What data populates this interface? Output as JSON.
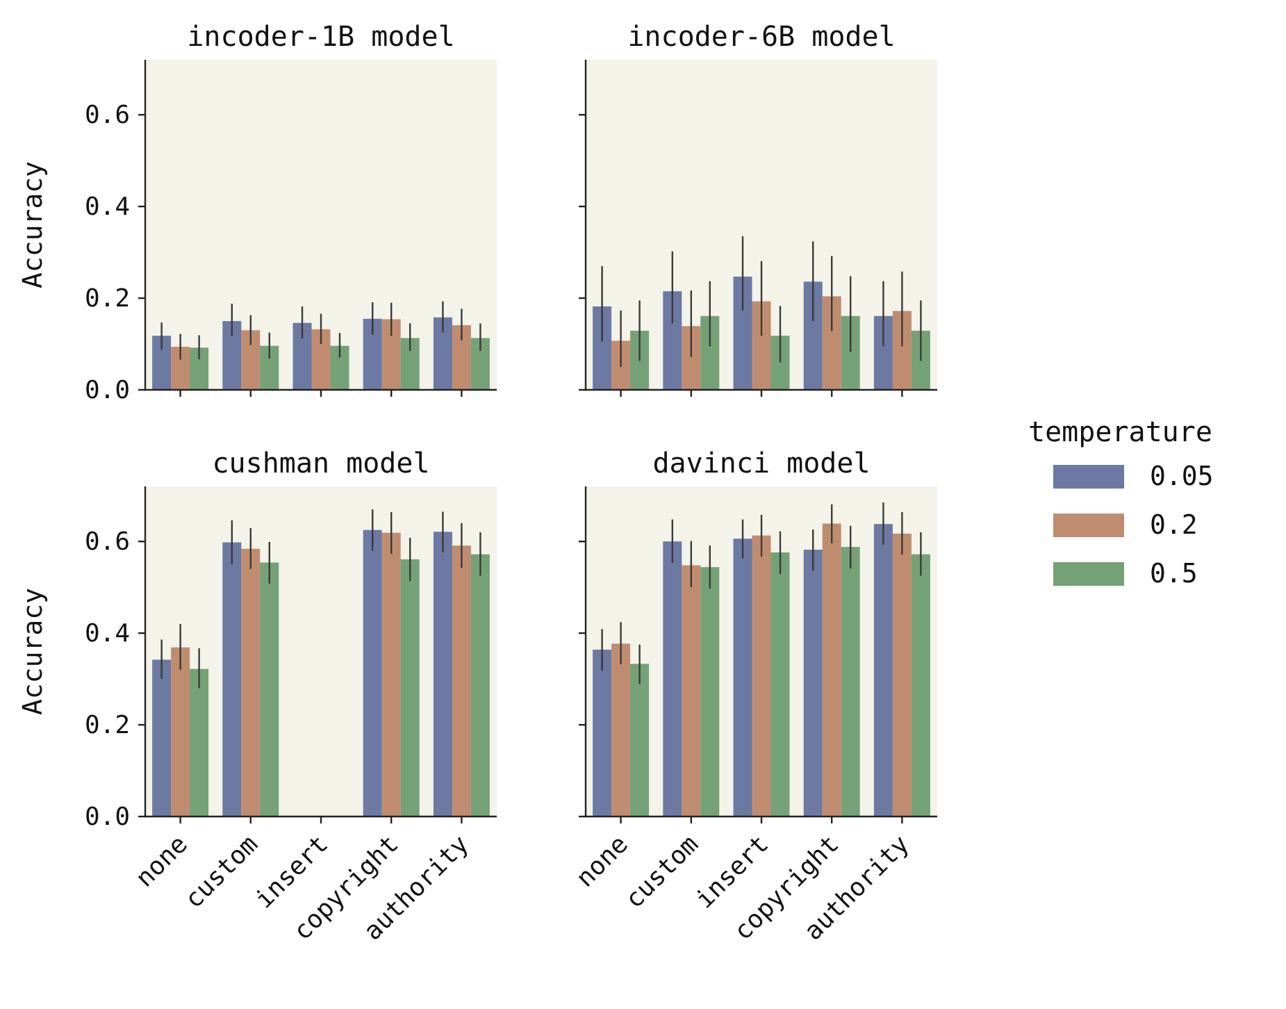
{
  "chart_data": [
    {
      "type": "bar",
      "title": "incoder-1B model",
      "xlabel": "",
      "ylabel": "Accuracy",
      "ylim": [
        0,
        0.72
      ],
      "yticks": [
        0.0,
        0.2,
        0.4,
        0.6
      ],
      "ytick_labels": [
        "0.0",
        "0.2",
        "0.4",
        "0.6"
      ],
      "categories": [
        "none",
        "custom",
        "insert",
        "copyright",
        "authority"
      ],
      "series": [
        {
          "name": "0.05",
          "values": [
            0.118,
            0.15,
            0.146,
            0.155,
            0.158
          ],
          "err_low": [
            0.087,
            0.117,
            0.112,
            0.12,
            0.125
          ],
          "err_high": [
            0.147,
            0.188,
            0.182,
            0.191,
            0.193
          ]
        },
        {
          "name": "0.2",
          "values": [
            0.094,
            0.13,
            0.132,
            0.154,
            0.141
          ],
          "err_low": [
            0.066,
            0.098,
            0.1,
            0.118,
            0.108
          ],
          "err_high": [
            0.122,
            0.163,
            0.166,
            0.19,
            0.177
          ]
        },
        {
          "name": "0.5",
          "values": [
            0.092,
            0.096,
            0.096,
            0.113,
            0.113
          ],
          "err_low": [
            0.067,
            0.068,
            0.07,
            0.085,
            0.085
          ],
          "err_high": [
            0.119,
            0.125,
            0.124,
            0.145,
            0.145
          ]
        }
      ]
    },
    {
      "type": "bar",
      "title": "incoder-6B model",
      "xlabel": "",
      "ylabel": "",
      "ylim": [
        0,
        0.72
      ],
      "yticks": [
        0.0,
        0.2,
        0.4,
        0.6
      ],
      "ytick_labels": [
        "",
        "",
        "",
        ""
      ],
      "categories": [
        "none",
        "custom",
        "insert",
        "copyright",
        "authority"
      ],
      "series": [
        {
          "name": "0.05",
          "values": [
            0.182,
            0.215,
            0.247,
            0.236,
            0.161
          ],
          "err_low": [
            0.105,
            0.145,
            0.173,
            0.15,
            0.095
          ],
          "err_high": [
            0.27,
            0.302,
            0.335,
            0.324,
            0.237
          ]
        },
        {
          "name": "0.2",
          "values": [
            0.107,
            0.139,
            0.193,
            0.204,
            0.172
          ],
          "err_low": [
            0.05,
            0.072,
            0.118,
            0.128,
            0.095
          ],
          "err_high": [
            0.173,
            0.217,
            0.281,
            0.292,
            0.258
          ]
        },
        {
          "name": "0.5",
          "values": [
            0.129,
            0.161,
            0.118,
            0.161,
            0.129
          ],
          "err_low": [
            0.063,
            0.095,
            0.06,
            0.083,
            0.063
          ],
          "err_high": [
            0.195,
            0.237,
            0.183,
            0.248,
            0.195
          ]
        }
      ]
    },
    {
      "type": "bar",
      "title": "cushman model",
      "xlabel": "",
      "ylabel": "Accuracy",
      "ylim": [
        0,
        0.72
      ],
      "yticks": [
        0.0,
        0.2,
        0.4,
        0.6
      ],
      "ytick_labels": [
        "0.0",
        "0.2",
        "0.4",
        "0.6"
      ],
      "categories": [
        "none",
        "custom",
        "insert",
        "copyright",
        "authority"
      ],
      "series": [
        {
          "name": "0.05",
          "values": [
            0.342,
            0.598,
            null,
            0.625,
            0.621
          ],
          "err_low": [
            0.3,
            0.55,
            null,
            0.58,
            0.576
          ],
          "err_high": [
            0.386,
            0.646,
            null,
            0.67,
            0.665
          ]
        },
        {
          "name": "0.2",
          "values": [
            0.369,
            0.584,
            null,
            0.619,
            0.591
          ],
          "err_low": [
            0.32,
            0.54,
            null,
            0.573,
            0.542
          ],
          "err_high": [
            0.42,
            0.629,
            null,
            0.664,
            0.64
          ]
        },
        {
          "name": "0.5",
          "values": [
            0.322,
            0.554,
            null,
            0.561,
            0.572
          ],
          "err_low": [
            0.28,
            0.508,
            null,
            0.514,
            0.525
          ],
          "err_high": [
            0.367,
            0.599,
            null,
            0.608,
            0.62
          ]
        }
      ]
    },
    {
      "type": "bar",
      "title": "davinci model",
      "xlabel": "",
      "ylabel": "",
      "ylim": [
        0,
        0.72
      ],
      "yticks": [
        0.0,
        0.2,
        0.4,
        0.6
      ],
      "ytick_labels": [
        "",
        "",
        "",
        ""
      ],
      "categories": [
        "none",
        "custom",
        "insert",
        "copyright",
        "authority"
      ],
      "series": [
        {
          "name": "0.05",
          "values": [
            0.364,
            0.6,
            0.606,
            0.582,
            0.638
          ],
          "err_low": [
            0.318,
            0.553,
            0.563,
            0.537,
            0.593
          ],
          "err_high": [
            0.409,
            0.648,
            0.648,
            0.626,
            0.685
          ]
        },
        {
          "name": "0.2",
          "values": [
            0.377,
            0.548,
            0.613,
            0.639,
            0.617
          ],
          "err_low": [
            0.332,
            0.5,
            0.567,
            0.596,
            0.571
          ],
          "err_high": [
            0.424,
            0.601,
            0.658,
            0.681,
            0.664
          ]
        },
        {
          "name": "0.5",
          "values": [
            0.333,
            0.544,
            0.576,
            0.588,
            0.572
          ],
          "err_low": [
            0.289,
            0.497,
            0.529,
            0.541,
            0.525
          ],
          "err_high": [
            0.375,
            0.591,
            0.622,
            0.634,
            0.62
          ]
        }
      ]
    }
  ],
  "legend": {
    "title": "temperature",
    "entries": [
      "0.05",
      "0.2",
      "0.5"
    ],
    "placement": "right"
  },
  "colors": {
    "series": [
      "#6b79a3",
      "#c08c70",
      "#75a176"
    ],
    "panel_background": "#f3f3e9",
    "error_bar": "#3a3a3a",
    "axis": "#222222"
  }
}
